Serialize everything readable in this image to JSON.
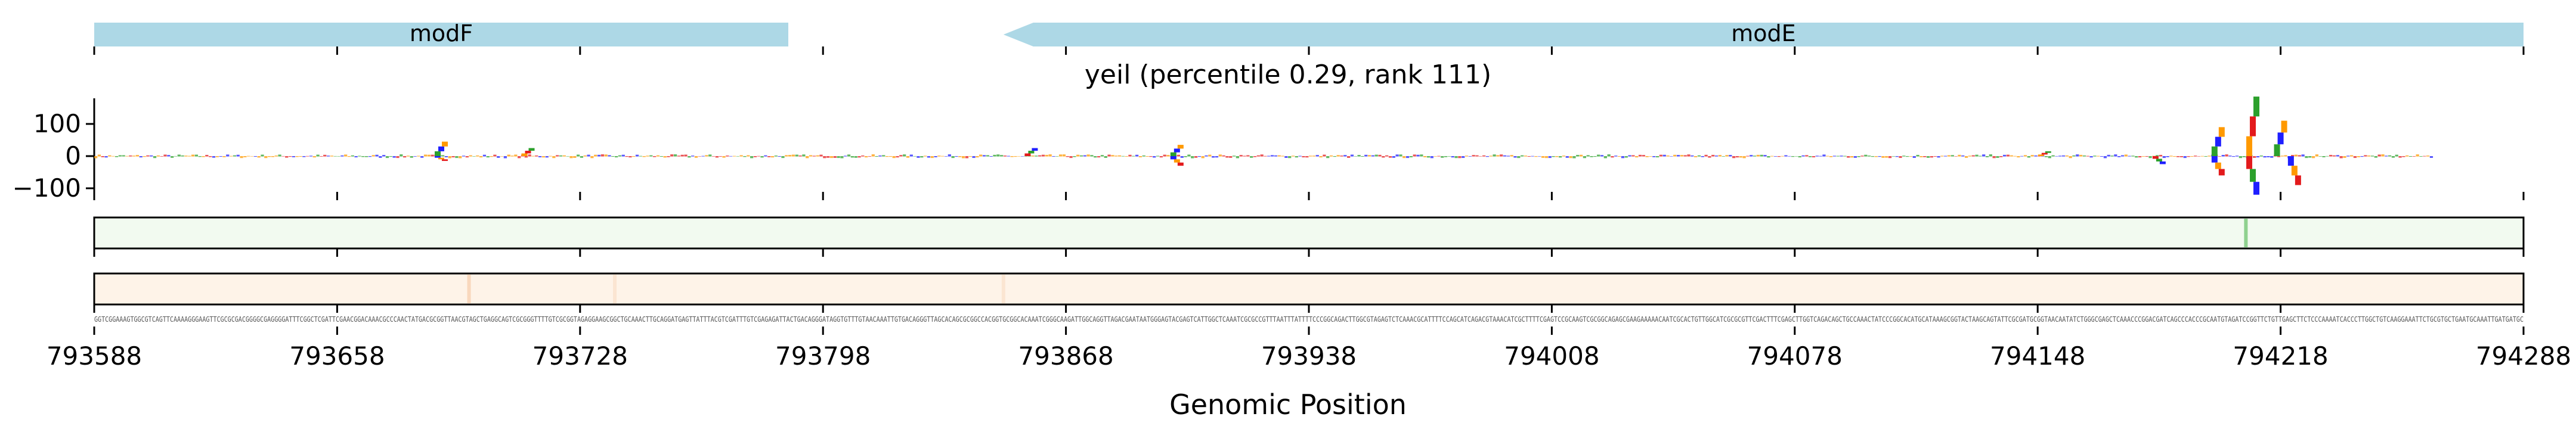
{
  "title": "yeil (percentile 0.29, rank 111)",
  "xlabel": "Genomic Position",
  "colors": {
    "gene": "#add8e6",
    "track_green": "#f2faf0",
    "track_green_mark": "#8fd18f",
    "track_orange": "#fef3e8",
    "track_orange_mark": "#f5c6a0",
    "logo_A": "#2ca02c",
    "logo_C": "#1f1fff",
    "logo_G": "#ff9900",
    "logo_T": "#e31a1c"
  },
  "chart_data": {
    "type": "bar",
    "subtype": "sequence-logo attribution track with gene annotation and two heatmap strips",
    "title": "yeil (percentile 0.29, rank 111)",
    "xlabel": "Genomic Position",
    "xlim": [
      793588,
      794288
    ],
    "xticks": [
      793588,
      793658,
      793728,
      793798,
      793868,
      793938,
      794008,
      794078,
      794148,
      794218,
      794288
    ],
    "ylim": [
      -150,
      190
    ],
    "yticks": [
      100,
      0,
      -100
    ],
    "ytick_labels": [
      "100",
      "0",
      "−100"
    ],
    "genes": [
      {
        "name": "modF",
        "start": 793588,
        "end": 793788,
        "strand": "-"
      },
      {
        "name": "modE",
        "start": 793850,
        "end": 794288,
        "strand": "-"
      }
    ],
    "attribution_peaks": [
      {
        "x": 793688,
        "value": 45
      },
      {
        "x": 793688,
        "value": -15
      },
      {
        "x": 793713,
        "value": 25
      },
      {
        "x": 793858,
        "value": 25
      },
      {
        "x": 793900,
        "value": 35
      },
      {
        "x": 793900,
        "value": -30
      },
      {
        "x": 794150,
        "value": 15
      },
      {
        "x": 794183,
        "value": -25
      },
      {
        "x": 794200,
        "value": 90
      },
      {
        "x": 794200,
        "value": -60
      },
      {
        "x": 794210,
        "value": 185
      },
      {
        "x": 794210,
        "value": -120
      },
      {
        "x": 794218,
        "value": 110
      },
      {
        "x": 794222,
        "value": -90
      }
    ],
    "green_track_marks": [
      {
        "x": 794208,
        "intensity": 1.0
      }
    ],
    "orange_track_marks": [
      {
        "x": 793696,
        "intensity": 0.6
      },
      {
        "x": 793738,
        "intensity": 0.3
      },
      {
        "x": 793850,
        "intensity": 0.3
      }
    ]
  },
  "sequence": "GGTCGGAAAGTGGCGTCAGTTCAAAAGGGAAGTTCGCGCGACGGGGCGAGGGGATTTCGGCTCGATTCGAACGGACAAACGCCCAACTATGACGCGGTTAACGTAGCTGAGGCAGTCGCGGGTTTTGTCGCGGTAGAGGAAGCGGCTGCAAACTTGCAGGATGAGTTATTTACGTCGATTTGTCGAGAGATTACTGACAGGGATAGGTGTTTGTAACAAATTGTGACAGGGTTAGCACAGCGCGGCCACGGTGCGGCACAAATCGGGCAAGATTGGCAGGTTAGACGAATAATGGGAGTACGAGTCATTGGCTCAAATCGCGCCGTTTAATTTATTTTCCCGGCAGACTTGGCGTAGAGTCTCAAACGCATTTTCCAGCATCAGACGTAAACATCGCTTTTCGAGTCCGCAAGTCGCGGCAGAGCGAAGAAAAACAATCGCACTGTTGGCATCGCGCGTTCGACTTTCGAGCTTGGTCAGACAGCTGCCAAACTATCCCGGCACATGCATAAAGCGGTACTAAGCAGTATTCGCGATGCGGTAACAATATCTGGGCGAGCTCAAACCCGGACGATCAGCCCACCCGCAATGTAGATCCGGTTCTGTTGAGCTTCTCCCAAAATCACCCTTGGCTGTCAAGGAAATTCTGCGTGCTGAATGCAAATTGATGATGC"
}
